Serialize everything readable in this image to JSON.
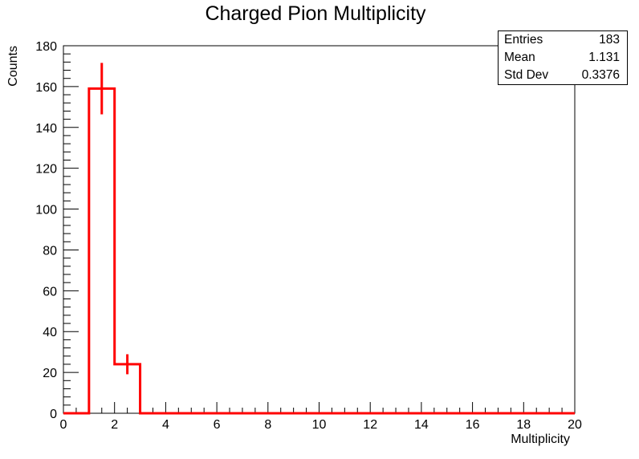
{
  "title": "Charged Pion Multiplicity",
  "stats": {
    "entries_label": "Entries",
    "entries_value": "183",
    "mean_label": "Mean",
    "mean_value": "1.131",
    "std_label": "Std Dev",
    "std_value": "0.3376"
  },
  "chart_data": {
    "type": "bar",
    "style": "step-histogram",
    "xlabel": "Multiplicity",
    "ylabel": "Counts",
    "xlim": [
      0,
      20
    ],
    "ylim": [
      0,
      180
    ],
    "x_ticks": [
      0,
      2,
      4,
      6,
      8,
      10,
      12,
      14,
      16,
      18,
      20
    ],
    "y_ticks": [
      0,
      20,
      40,
      60,
      80,
      100,
      120,
      140,
      160,
      180
    ],
    "bin_edges": [
      0,
      1,
      2,
      3,
      4,
      5,
      6,
      7,
      8,
      9,
      10,
      11,
      12,
      13,
      14,
      15,
      16,
      17,
      18,
      19,
      20
    ],
    "values": [
      0,
      159,
      24,
      0,
      0,
      0,
      0,
      0,
      0,
      0,
      0,
      0,
      0,
      0,
      0,
      0,
      0,
      0,
      0,
      0
    ],
    "errors": [
      0,
      12.6,
      4.9,
      0,
      0,
      0,
      0,
      0,
      0,
      0,
      0,
      0,
      0,
      0,
      0,
      0,
      0,
      0,
      0,
      0
    ],
    "color": "#ff0000",
    "legend": "none",
    "grid": false
  }
}
